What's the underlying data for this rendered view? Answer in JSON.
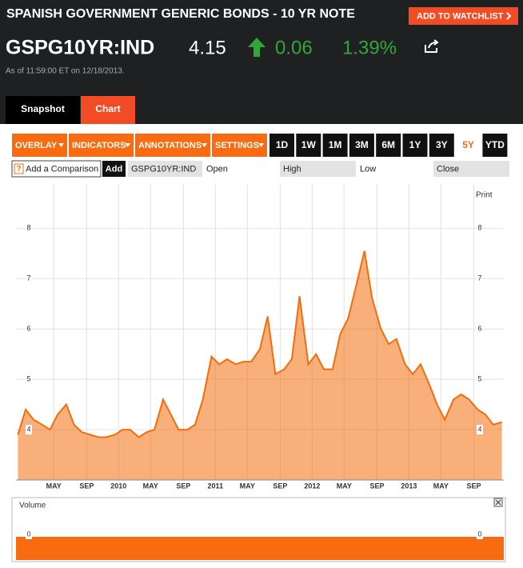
{
  "header": {
    "title": "SPANISH GOVERNMENT GENERIC BONDS - 10 YR NOTE",
    "watchlist_button": "ADD TO WATCHLIST",
    "ticker": "GSPG10YR:IND",
    "price": 4.15,
    "change": 0.06,
    "change_percent": "1.39%",
    "timestamp": "As of 11:59:00 ET on 12/18/2013."
  },
  "tabs": [
    "Snapshot",
    "Chart"
  ],
  "active_tab": 1,
  "toolbar": {
    "menus": [
      "OVERLAY",
      "INDICATORS",
      "ANNOTATIONS",
      "SETTINGS"
    ],
    "ranges": [
      "1D",
      "1W",
      "1M",
      "3M",
      "6M",
      "1Y",
      "3Y",
      "5Y",
      "YTD"
    ],
    "active_range": 7
  },
  "comparison": {
    "help": "?",
    "input": "Add a Comparison",
    "button": "Add",
    "symbol": "GSPG10YR:IND",
    "fields": [
      "Open",
      "High",
      "Low",
      "Close"
    ]
  },
  "print": "Print",
  "chart_data": {
    "type": "area",
    "color": "#f26d0c",
    "grid": true,
    "x": [
      2008.96,
      2009.04,
      2009.12,
      2009.21,
      2009.29,
      2009.37,
      2009.46,
      2009.54,
      2009.62,
      2009.71,
      2009.79,
      2009.87,
      2009.96,
      2010.04,
      2010.12,
      2010.21,
      2010.29,
      2010.37,
      2010.46,
      2010.54,
      2010.62,
      2010.71,
      2010.79,
      2010.87,
      2010.96,
      2011.04,
      2011.12,
      2011.21,
      2011.29,
      2011.37,
      2011.46,
      2011.54,
      2011.62,
      2011.71,
      2011.79,
      2011.87,
      2011.96,
      2012.04,
      2012.12,
      2012.21,
      2012.29,
      2012.37,
      2012.46,
      2012.54,
      2012.62,
      2012.71,
      2012.79,
      2012.87,
      2012.96,
      2013.04,
      2013.12,
      2013.21,
      2013.29,
      2013.37,
      2013.46,
      2013.54,
      2013.62,
      2013.71,
      2013.79,
      2013.87,
      2013.96
    ],
    "values": [
      3.9,
      4.4,
      4.2,
      4.1,
      4.0,
      4.3,
      4.5,
      4.1,
      3.95,
      3.9,
      3.85,
      3.85,
      3.9,
      4.0,
      4.0,
      3.85,
      3.95,
      4.0,
      4.6,
      4.3,
      4.0,
      4.0,
      4.1,
      4.6,
      5.45,
      5.3,
      5.4,
      5.3,
      5.35,
      5.35,
      5.6,
      6.25,
      5.1,
      5.2,
      5.4,
      6.65,
      5.3,
      5.5,
      5.2,
      5.2,
      5.9,
      6.2,
      6.9,
      7.55,
      6.6,
      6.0,
      5.7,
      5.8,
      5.3,
      5.1,
      5.3,
      4.9,
      4.5,
      4.2,
      4.6,
      4.7,
      4.6,
      4.4,
      4.3,
      4.1,
      4.15
    ],
    "xlim": [
      2008.94,
      2013.98
    ],
    "ylim": [
      3,
      8.8
    ],
    "yticks": [
      4,
      5,
      6,
      7,
      8
    ],
    "xticks": [
      {
        "value": 2009.33,
        "label": "MAY"
      },
      {
        "value": 2009.67,
        "label": "SEP"
      },
      2010,
      {
        "value": 2010.33,
        "label": "MAY"
      },
      {
        "value": 2010.67,
        "label": "SEP"
      },
      2011,
      {
        "value": 2011.33,
        "label": "MAY"
      },
      {
        "value": 2011.67,
        "label": "SEP"
      },
      2012,
      {
        "value": 2012.33,
        "label": "MAY"
      },
      {
        "value": 2012.67,
        "label": "SEP"
      },
      2013,
      {
        "value": 2013.33,
        "label": "MAY"
      },
      {
        "value": 2013.67,
        "label": "SEP"
      }
    ]
  },
  "volume": {
    "label": "Volume",
    "yticks": [
      0
    ]
  }
}
